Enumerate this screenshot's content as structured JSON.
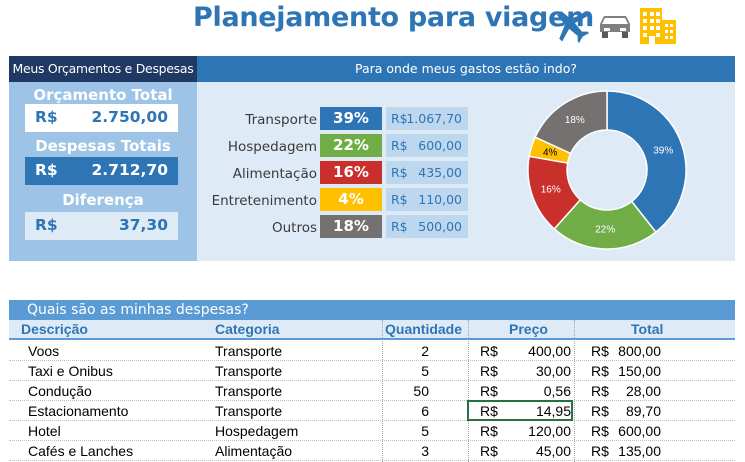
{
  "title": "Planejamento para viagem",
  "colors": {
    "blue": "#2e75b6",
    "green": "#70ad47",
    "red": "#c9302c",
    "yellow": "#ffc000",
    "gray": "#767171"
  },
  "summary": {
    "header": "Meus Orçamentos e Despesas",
    "budget_label": "Orçamento Total",
    "budget_currency": "R$",
    "budget_value": "2.750,00",
    "expenses_label": "Despesas Totais",
    "expenses_currency": "R$",
    "expenses_value": "2.712,70",
    "diff_label": "Diferença",
    "diff_currency": "R$",
    "diff_value": "37,30"
  },
  "breakdown": {
    "header": "Para onde meus gastos estão indo?",
    "items": [
      {
        "label": "Transporte",
        "pct": "39%",
        "currency": "R$",
        "amount": "1.067,70"
      },
      {
        "label": "Hospedagem",
        "pct": "22%",
        "currency": "R$",
        "amount": "600,00"
      },
      {
        "label": "Alimentação",
        "pct": "16%",
        "currency": "R$",
        "amount": "435,00"
      },
      {
        "label": "Entretenimento",
        "pct": "4%",
        "currency": "R$",
        "amount": "110,00"
      },
      {
        "label": "Outros",
        "pct": "18%",
        "currency": "R$",
        "amount": "500,00"
      }
    ]
  },
  "chart_data": {
    "type": "pie",
    "categories": [
      "Transporte",
      "Hospedagem",
      "Alimentação",
      "Entretenimento",
      "Outros"
    ],
    "values": [
      39,
      22,
      16,
      4,
      18
    ],
    "labels": [
      "39%",
      "22%",
      "16%",
      "4%",
      "18%"
    ],
    "title": ""
  },
  "expenses": {
    "header": "Quais são as minhas despesas?",
    "columns": [
      "Descrição",
      "Categoria",
      "Quantidade",
      "Preço",
      "Total"
    ],
    "rows": [
      {
        "desc": "Voos",
        "cat": "Transporte",
        "qty": "2",
        "pc": "R$",
        "price": "400,00",
        "tc": "R$",
        "total": "800,00"
      },
      {
        "desc": "Taxi e Onibus",
        "cat": "Transporte",
        "qty": "5",
        "pc": "R$",
        "price": "30,00",
        "tc": "R$",
        "total": "150,00"
      },
      {
        "desc": "Condução",
        "cat": "Transporte",
        "qty": "50",
        "pc": "R$",
        "price": "0,56",
        "tc": "R$",
        "total": "28,00"
      },
      {
        "desc": "Estacionamento",
        "cat": "Transporte",
        "qty": "6",
        "pc": "R$",
        "price": "14,95",
        "tc": "R$",
        "total": "89,70"
      },
      {
        "desc": "Hotel",
        "cat": "Hospedagem",
        "qty": "5",
        "pc": "R$",
        "price": "120,00",
        "tc": "R$",
        "total": "600,00"
      },
      {
        "desc": "Cafés e Lanches",
        "cat": "Alimentação",
        "qty": "3",
        "pc": "R$",
        "price": "45,00",
        "tc": "R$",
        "total": "135,00"
      }
    ]
  }
}
